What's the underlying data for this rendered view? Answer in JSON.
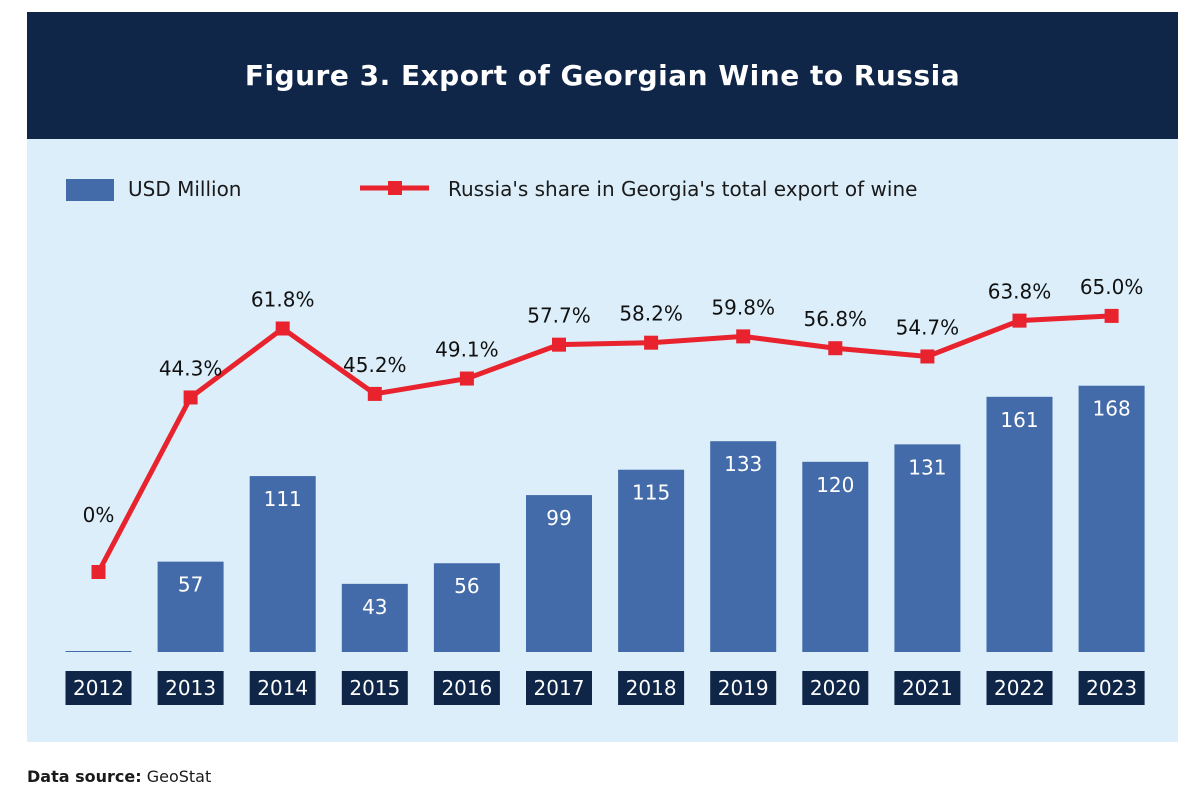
{
  "figure_title": "Figure 3. Export of Georgian Wine to Russia",
  "source": {
    "label": "Data source:",
    "value": "GeoStat"
  },
  "colors": {
    "header_bg": "#0f2648",
    "panel_bg": "#dbeefa",
    "bar": "#446ba9",
    "line": "#e8232e",
    "year_box": "#0f2648"
  },
  "chart_data": {
    "type": "bar+line",
    "categories": [
      "2012",
      "2013",
      "2014",
      "2015",
      "2016",
      "2017",
      "2018",
      "2019",
      "2020",
      "2021",
      "2022",
      "2023"
    ],
    "series": [
      {
        "name": "USD Million",
        "kind": "bar",
        "values": [
          0,
          57,
          111,
          43,
          56,
          99,
          115,
          133,
          120,
          131,
          161,
          168
        ],
        "labels": [
          "",
          "57",
          "111",
          "43",
          "56",
          "99",
          "115",
          "133",
          "120",
          "131",
          "161",
          "168"
        ]
      },
      {
        "name": "Russia's share in Georgia's total export of wine",
        "kind": "line",
        "values": [
          0,
          44.3,
          61.8,
          45.2,
          49.1,
          57.7,
          58.2,
          59.8,
          56.8,
          54.7,
          63.8,
          65.0
        ],
        "labels": [
          "0%",
          "44.3%",
          "61.8%",
          "45.2%",
          "49.1%",
          "57.7%",
          "58.2%",
          "59.8%",
          "56.8%",
          "54.7%",
          "63.8%",
          "65.0%"
        ]
      }
    ],
    "legend_position": "top-left",
    "grid": false
  }
}
